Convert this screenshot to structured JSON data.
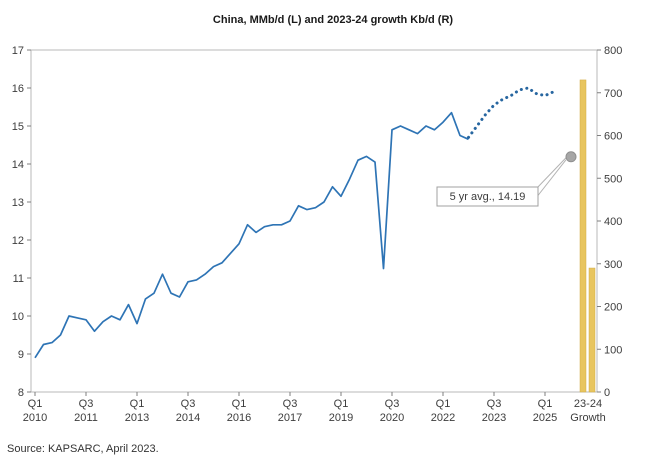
{
  "page": {
    "title": "China, MMb/d (L) and 2023-24 growth Kb/d (R)",
    "source": "Source: KAPSARC, April 2023."
  },
  "chart_data": {
    "type": "line",
    "title": "China, MMb/d (L) and 2023-24 growth Kb/d (R)",
    "left_axis": {
      "min": 8,
      "max": 17,
      "ticks": [
        17,
        16,
        15,
        14,
        13,
        12,
        11,
        10,
        9,
        8
      ]
    },
    "right_axis": {
      "min": 0,
      "max": 800,
      "ticks": [
        800,
        700,
        600,
        500,
        400,
        300,
        200,
        100,
        0
      ]
    },
    "x_ticks": [
      {
        "index": 0,
        "line1": "Q1",
        "line2": "2010"
      },
      {
        "index": 6,
        "line1": "Q3",
        "line2": "2011"
      },
      {
        "index": 12,
        "line1": "Q1",
        "line2": "2013"
      },
      {
        "index": 18,
        "line1": "Q3",
        "line2": "2014"
      },
      {
        "index": 24,
        "line1": "Q1",
        "line2": "2016"
      },
      {
        "index": 30,
        "line1": "Q3",
        "line2": "2017"
      },
      {
        "index": 36,
        "line1": "Q1",
        "line2": "2019"
      },
      {
        "index": 42,
        "line1": "Q3",
        "line2": "2020"
      },
      {
        "index": 48,
        "line1": "Q1",
        "line2": "2022"
      },
      {
        "index": 54,
        "line1": "Q3",
        "line2": "2023"
      },
      {
        "index": 60,
        "line1": "Q1",
        "line2": "2025"
      }
    ],
    "series": [
      {
        "name": "actual-quarterly-demand",
        "style": "solid",
        "color": "#2e74b5",
        "start_index": 0,
        "values": [
          8.9,
          9.25,
          9.3,
          9.5,
          10.0,
          9.95,
          9.9,
          9.6,
          9.85,
          10.0,
          9.9,
          10.3,
          9.8,
          10.45,
          10.6,
          11.1,
          10.6,
          10.5,
          10.9,
          10.95,
          11.1,
          11.3,
          11.4,
          11.65,
          11.9,
          12.4,
          12.2,
          12.35,
          12.4,
          12.4,
          12.5,
          12.9,
          12.8,
          12.85,
          13.0,
          13.4,
          13.15,
          13.6,
          14.1,
          14.2,
          14.05,
          11.25,
          14.9,
          15.0,
          14.9,
          14.8,
          15.0,
          14.9,
          15.1,
          15.35,
          14.75,
          14.65
        ]
      },
      {
        "name": "forecast-quarterly-demand",
        "style": "dotted",
        "color": "#2766a0",
        "start_index": 51,
        "values": [
          14.7,
          15.0,
          15.3,
          15.55,
          15.7,
          15.8,
          15.95,
          16.0,
          15.85,
          15.8,
          15.9
        ]
      }
    ],
    "bars": {
      "group_label": [
        "23-24",
        "Growth"
      ],
      "axis": "right",
      "color": "#e8c55f",
      "values": [
        730,
        290
      ]
    },
    "marker": {
      "label": "5 yr avg., 14.19",
      "value": 14.19,
      "color": "#a6a6a6"
    }
  }
}
